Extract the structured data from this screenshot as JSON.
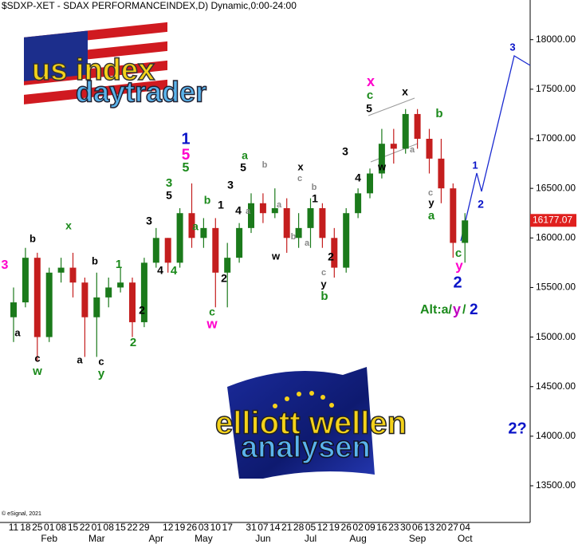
{
  "chart_data": {
    "type": "candlestick",
    "title": "$SDXP-XET - SDAX PERFORMANCEINDEX,D) Dynamic,0:00-24:00",
    "copyright": "© eSignal, 2021",
    "logos": [
      "us index",
      "daytrader",
      "elliott wellen",
      "analysen"
    ],
    "categories": [
      "11",
      "18",
      "25",
      "01",
      "08",
      "15",
      "22",
      "01",
      "08",
      "15",
      "22",
      "29",
      null,
      "12",
      "19",
      "26",
      "03",
      "10",
      "17",
      null,
      "31",
      "07",
      "14",
      "21",
      "28",
      "05",
      "12",
      "19",
      "26",
      "02",
      "09",
      "16",
      "23",
      "30",
      "06",
      "13",
      "20",
      "27",
      "04"
    ],
    "month_labels": [
      null,
      null,
      null,
      "Feb",
      null,
      null,
      null,
      "Mar",
      null,
      null,
      null,
      null,
      "Apr",
      null,
      null,
      null,
      "May",
      null,
      null,
      null,
      null,
      "Jun",
      null,
      null,
      null,
      "Jul",
      null,
      null,
      null,
      "Aug",
      null,
      null,
      null,
      null,
      "Sep",
      null,
      null,
      null,
      "Oct"
    ],
    "open": [
      15200,
      15350,
      15800,
      15000,
      15650,
      15700,
      15550,
      15200,
      15400,
      15500,
      15550,
      15150,
      15750,
      16000,
      15750,
      16250,
      16000,
      16100,
      15650,
      15800,
      16100,
      16350,
      16250,
      16300,
      16000,
      16100,
      16300,
      16000,
      15700,
      16250,
      16450,
      16650,
      16950,
      16900,
      17250,
      17000,
      16800,
      16500,
      15950
    ],
    "high": [
      15500,
      15900,
      15850,
      15700,
      15800,
      15850,
      15600,
      15650,
      15600,
      15700,
      15600,
      15800,
      16100,
      16000,
      16300,
      16550,
      16200,
      16200,
      15950,
      16150,
      16450,
      16450,
      16500,
      16400,
      16250,
      16400,
      16350,
      16100,
      16300,
      16500,
      16700,
      17100,
      17100,
      17300,
      17300,
      17100,
      17000,
      16550,
      16250
    ],
    "low": [
      14950,
      15300,
      14750,
      14950,
      15550,
      15400,
      14800,
      14800,
      15300,
      15450,
      15000,
      15100,
      15700,
      15650,
      15700,
      15900,
      15900,
      15300,
      15300,
      15750,
      16050,
      16150,
      16200,
      15850,
      15900,
      15900,
      15900,
      15600,
      15650,
      16200,
      16400,
      16600,
      16750,
      16850,
      16900,
      16650,
      16350,
      15800,
      15750
    ],
    "close": [
      15350,
      15800,
      15000,
      15650,
      15700,
      15550,
      15200,
      15400,
      15500,
      15550,
      15150,
      15750,
      16000,
      15750,
      16250,
      16000,
      16100,
      15650,
      15800,
      16100,
      16350,
      16250,
      16300,
      16000,
      16100,
      16300,
      16000,
      15700,
      16250,
      16450,
      16650,
      16950,
      16900,
      17250,
      17000,
      16800,
      16500,
      15950,
      16177.07
    ],
    "last_value_label": "16177.07",
    "up_color": "#1b7a1b",
    "down_color": "#c41e1e",
    "last_color": "#e0201e",
    "ylim": [
      13130,
      18400
    ],
    "yticks": [
      {
        "value": 13500,
        "label": "13500.00"
      },
      {
        "value": 14000,
        "label": "14000.00"
      },
      {
        "value": 14500,
        "label": "14500.00"
      },
      {
        "value": 15000,
        "label": "15000.00"
      },
      {
        "value": 15500,
        "label": "15500.00"
      },
      {
        "value": 16000,
        "label": "16000.00"
      },
      {
        "value": 16500,
        "label": "16500.00"
      },
      {
        "value": 17000,
        "label": "17000.00"
      },
      {
        "value": 17500,
        "label": "17500.00"
      },
      {
        "value": 18000,
        "label": "18000.00"
      }
    ],
    "annotations": [
      {
        "text": "3",
        "color": "#ff00cc"
      },
      {
        "text": "b",
        "color": "#000000"
      },
      {
        "text": "a",
        "color": "#000000"
      },
      {
        "text": "c",
        "color": "#000000"
      },
      {
        "text": "w",
        "color": "#1b8a1b"
      },
      {
        "text": "x",
        "color": "#1b8a1b"
      },
      {
        "text": "b",
        "color": "#000000"
      },
      {
        "text": "a",
        "color": "#000000"
      },
      {
        "text": "c",
        "color": "#000000"
      },
      {
        "text": "y",
        "color": "#1b8a1b"
      },
      {
        "text": "1",
        "color": "#1b8a1b"
      },
      {
        "text": "2",
        "color": "#000000"
      },
      {
        "text": "2",
        "color": "#1b8a1b"
      },
      {
        "text": "3",
        "color": "#000000"
      },
      {
        "text": "4",
        "color": "#000000"
      },
      {
        "text": "4",
        "color": "#1b8a1b"
      },
      {
        "text": "3",
        "color": "#1b8a1b"
      },
      {
        "text": "5",
        "color": "#000000"
      },
      {
        "text": "1",
        "color": "#0a14c8"
      },
      {
        "text": "5",
        "color": "#ff00cc"
      },
      {
        "text": "5",
        "color": "#1b8a1b"
      },
      {
        "text": "b",
        "color": "#1b8a1b"
      },
      {
        "text": "a",
        "color": "#1b8a1b"
      },
      {
        "text": "1",
        "color": "#000000"
      },
      {
        "text": "2",
        "color": "#000000"
      },
      {
        "text": "c",
        "color": "#1b8a1b"
      },
      {
        "text": "w",
        "color": "#ff00cc"
      },
      {
        "text": "3",
        "color": "#000000"
      },
      {
        "text": "4",
        "color": "#000000"
      },
      {
        "text": "a",
        "color": "#888888"
      },
      {
        "text": "a",
        "color": "#1b8a1b"
      },
      {
        "text": "5",
        "color": "#000000"
      },
      {
        "text": "b",
        "color": "#888888"
      },
      {
        "text": "x",
        "color": "#000000"
      },
      {
        "text": "c",
        "color": "#888888"
      },
      {
        "text": "a",
        "color": "#888888"
      },
      {
        "text": "b",
        "color": "#888888"
      },
      {
        "text": "w",
        "color": "#000000"
      },
      {
        "text": "b",
        "color": "#888888"
      },
      {
        "text": "a",
        "color": "#888888"
      },
      {
        "text": "1",
        "color": "#000000"
      },
      {
        "text": "2",
        "color": "#000000"
      },
      {
        "text": "c",
        "color": "#888888"
      },
      {
        "text": "y",
        "color": "#000000"
      },
      {
        "text": "b",
        "color": "#1b8a1b"
      },
      {
        "text": "3",
        "color": "#000000"
      },
      {
        "text": "4",
        "color": "#000000"
      },
      {
        "text": "x",
        "color": "#ff00cc"
      },
      {
        "text": "c",
        "color": "#1b8a1b"
      },
      {
        "text": "5",
        "color": "#000000"
      },
      {
        "text": "w",
        "color": "#000000"
      },
      {
        "text": "x",
        "color": "#000000"
      },
      {
        "text": "a",
        "color": "#888888"
      },
      {
        "text": "b",
        "color": "#1b8a1b"
      },
      {
        "text": "c",
        "color": "#888888"
      },
      {
        "text": "y",
        "color": "#000000"
      },
      {
        "text": "a",
        "color": "#1b8a1b"
      },
      {
        "text": "c",
        "color": "#1b8a1b"
      },
      {
        "text": "y",
        "color": "#ff00cc"
      },
      {
        "text": "2",
        "color": "#0a14c8"
      },
      {
        "text": "1",
        "color": "#0a14c8"
      },
      {
        "text": "2",
        "color": "#0a14c8"
      },
      {
        "text": "3",
        "color": "#0a14c8"
      },
      {
        "text": "2?",
        "color": "#0a14c8"
      },
      {
        "text": "Alt:a/",
        "color": "#1b8a1b"
      },
      {
        "text": "y",
        "color": "#c000c0"
      },
      {
        "text": "/",
        "color": "#1b8a1b"
      },
      {
        "text": "2",
        "color": "#0a14c8"
      }
    ]
  }
}
